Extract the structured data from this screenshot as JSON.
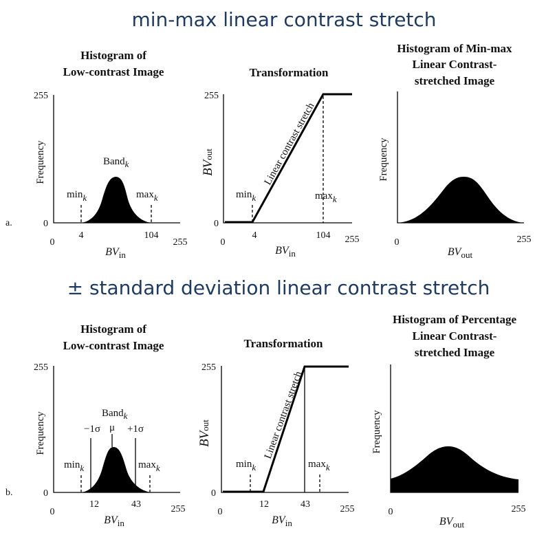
{
  "sections": [
    {
      "title": "min-max linear contrast stretch",
      "row_label": "a.",
      "left_panel": {
        "title_lines": [
          "Histogram of",
          "Low-contrast Image"
        ],
        "y_max": "255",
        "y_min": "0",
        "x_min": "0",
        "x_max": "255",
        "ylabel": "Frequency",
        "x_label_main": "BV",
        "x_label_sub": "in",
        "band_label": "Band",
        "band_sub": "k",
        "min_label": "min",
        "max_label": "max",
        "k_sub": "k",
        "min_value": "4",
        "max_value": "104"
      },
      "mid_panel": {
        "title": "Transformation",
        "y_max": "255",
        "y_min": "0",
        "x_min": "0",
        "x_max": "255",
        "y_label_main": "BV",
        "y_label_sub": "out",
        "x_label_main": "BV",
        "x_label_sub": "in",
        "line_label": "Linear contrast stretch",
        "min_label": "min",
        "max_label": "max",
        "k_sub": "k",
        "min_value": "4",
        "max_value": "104"
      },
      "right_panel": {
        "title_lines": [
          "Histogram of Min-max",
          "Linear Contrast-",
          "stretched Image"
        ],
        "ylabel": "Frequency",
        "x_min": "0",
        "x_max": "255",
        "x_label_main": "BV",
        "x_label_sub": "out"
      }
    },
    {
      "title": "± standard deviation linear contrast stretch",
      "row_label": "b.",
      "left_panel": {
        "title_lines": [
          "Histogram of",
          "Low-contrast Image"
        ],
        "y_max": "255",
        "y_min": "0",
        "x_min": "0",
        "x_max": "255",
        "ylabel": "Frequency",
        "x_label_main": "BV",
        "x_label_sub": "in",
        "band_label": "Band",
        "band_sub": "k",
        "mu_label": "μ",
        "minus_sigma": "−1σ",
        "plus_sigma": "+1σ",
        "min_label": "min",
        "max_label": "max",
        "k_sub": "k",
        "lower_value": "12",
        "upper_value": "43"
      },
      "mid_panel": {
        "title": "Transformation",
        "y_max": "255",
        "y_min": "0",
        "x_min": "0",
        "x_max": "255",
        "y_label_main": "BV",
        "y_label_sub": "out",
        "x_label_main": "BV",
        "x_label_sub": "in",
        "line_label": "Linear contrast stretch",
        "min_label": "min",
        "max_label": "max",
        "k_sub": "k",
        "lower_value": "12",
        "upper_value": "43"
      },
      "right_panel": {
        "title_lines": [
          "Histogram of Percentage",
          "Linear Contrast-",
          "stretched Image"
        ],
        "ylabel": "Frequency",
        "x_min": "0",
        "x_max": "255",
        "x_label_main": "BV",
        "x_label_sub": "out"
      }
    }
  ]
}
